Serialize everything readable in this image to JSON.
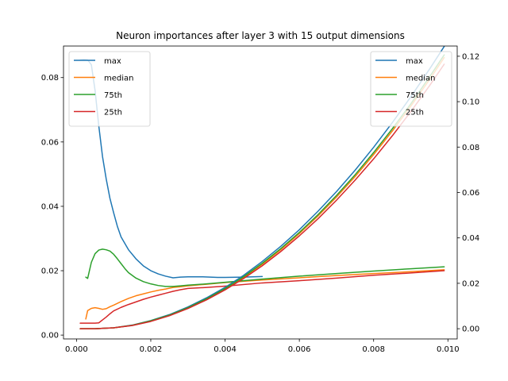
{
  "chart_data": {
    "type": "line",
    "title": "Neuron importances after layer 3 with 15 output dimensions",
    "xlabel": "",
    "ylabel_left": "",
    "ylabel_right": "",
    "xlim": [
      -0.00035,
      0.01025
    ],
    "ylim_left": [
      -0.0012,
      0.0898
    ],
    "ylim_right": [
      -0.0045,
      0.1245
    ],
    "x_ticks": [
      "0.000",
      "0.002",
      "0.004",
      "0.006",
      "0.008",
      "0.010"
    ],
    "y_left_ticks": [
      "0.00",
      "0.02",
      "0.04",
      "0.06",
      "0.08"
    ],
    "y_right_ticks": [
      "0.00",
      "0.02",
      "0.04",
      "0.06",
      "0.08",
      "0.10",
      "0.12"
    ],
    "grid": false,
    "legends": [
      {
        "placement": "top-left",
        "entries": [
          "max",
          "median",
          "75th",
          "25th"
        ]
      },
      {
        "placement": "top-right",
        "entries": [
          "max",
          "median",
          "75th",
          "25th"
        ]
      }
    ],
    "colors": {
      "max": "#1f77b4",
      "median": "#ff7f0e",
      "75th": "#2ca02c",
      "25th": "#d62728"
    },
    "left_axis_series": [
      {
        "name": "max",
        "color": "#1f77b4",
        "points": [
          [
            0.0001,
            0.0855
          ],
          [
            0.0002,
            0.0856
          ],
          [
            0.0003,
            0.0855
          ],
          [
            0.0004,
            0.084
          ],
          [
            0.0005,
            0.076
          ],
          [
            0.0006,
            0.065
          ],
          [
            0.0007,
            0.0555
          ],
          [
            0.0008,
            0.0485
          ],
          [
            0.0009,
            0.0425
          ],
          [
            0.001,
            0.038
          ],
          [
            0.0011,
            0.0338
          ],
          [
            0.0012,
            0.0305
          ],
          [
            0.0014,
            0.0265
          ],
          [
            0.0016,
            0.0237
          ],
          [
            0.0018,
            0.0215
          ],
          [
            0.002,
            0.02
          ],
          [
            0.0022,
            0.019
          ],
          [
            0.0024,
            0.0183
          ],
          [
            0.0026,
            0.0178
          ],
          [
            0.0028,
            0.018
          ],
          [
            0.003,
            0.0181
          ],
          [
            0.0032,
            0.0181
          ],
          [
            0.0034,
            0.0181
          ],
          [
            0.0036,
            0.018
          ],
          [
            0.0038,
            0.0179
          ],
          [
            0.004,
            0.0179
          ],
          [
            0.0045,
            0.018
          ],
          [
            0.005,
            0.0182
          ]
        ]
      },
      {
        "name": "median",
        "color": "#ff7f0e",
        "points": [
          [
            0.00025,
            0.005
          ],
          [
            0.0003,
            0.0076
          ],
          [
            0.0004,
            0.0083
          ],
          [
            0.0005,
            0.0085
          ],
          [
            0.0006,
            0.0083
          ],
          [
            0.0007,
            0.008
          ],
          [
            0.0008,
            0.0082
          ],
          [
            0.0009,
            0.0088
          ],
          [
            0.001,
            0.0093
          ],
          [
            0.0012,
            0.0104
          ],
          [
            0.0014,
            0.0114
          ],
          [
            0.0016,
            0.0122
          ],
          [
            0.0018,
            0.0128
          ],
          [
            0.002,
            0.0134
          ],
          [
            0.0022,
            0.0139
          ],
          [
            0.0024,
            0.0143
          ],
          [
            0.0026,
            0.0148
          ],
          [
            0.0028,
            0.015
          ],
          [
            0.003,
            0.0153
          ],
          [
            0.0035,
            0.0158
          ],
          [
            0.004,
            0.0163
          ],
          [
            0.005,
            0.0171
          ],
          [
            0.006,
            0.0178
          ],
          [
            0.007,
            0.0185
          ],
          [
            0.008,
            0.0191
          ],
          [
            0.009,
            0.0197
          ],
          [
            0.0099,
            0.0203
          ]
        ]
      },
      {
        "name": "75th",
        "color": "#2ca02c",
        "points": [
          [
            0.00025,
            0.018
          ],
          [
            0.0003,
            0.0176
          ],
          [
            0.0004,
            0.0226
          ],
          [
            0.0005,
            0.0253
          ],
          [
            0.0006,
            0.0264
          ],
          [
            0.0007,
            0.0267
          ],
          [
            0.0008,
            0.0265
          ],
          [
            0.0009,
            0.0261
          ],
          [
            0.001,
            0.0251
          ],
          [
            0.0011,
            0.0237
          ],
          [
            0.0012,
            0.0222
          ],
          [
            0.0013,
            0.0207
          ],
          [
            0.0014,
            0.0194
          ],
          [
            0.0016,
            0.0177
          ],
          [
            0.0018,
            0.0166
          ],
          [
            0.002,
            0.0159
          ],
          [
            0.0022,
            0.0154
          ],
          [
            0.0024,
            0.0151
          ],
          [
            0.0026,
            0.0151
          ],
          [
            0.0028,
            0.0153
          ],
          [
            0.003,
            0.0155
          ],
          [
            0.0035,
            0.0159
          ],
          [
            0.004,
            0.0164
          ],
          [
            0.005,
            0.0174
          ],
          [
            0.006,
            0.0183
          ],
          [
            0.007,
            0.0191
          ],
          [
            0.008,
            0.0199
          ],
          [
            0.009,
            0.0206
          ],
          [
            0.0099,
            0.0212
          ]
        ]
      },
      {
        "name": "25th",
        "color": "#d62728",
        "points": [
          [
            0.0001,
            0.0037
          ],
          [
            0.0003,
            0.0037
          ],
          [
            0.0005,
            0.0037
          ],
          [
            0.0006,
            0.0038
          ],
          [
            0.0007,
            0.0047
          ],
          [
            0.0008,
            0.0056
          ],
          [
            0.0009,
            0.0066
          ],
          [
            0.001,
            0.0075
          ],
          [
            0.0012,
            0.0086
          ],
          [
            0.0014,
            0.0095
          ],
          [
            0.0016,
            0.0103
          ],
          [
            0.0018,
            0.0111
          ],
          [
            0.002,
            0.0118
          ],
          [
            0.0022,
            0.0124
          ],
          [
            0.0024,
            0.013
          ],
          [
            0.0026,
            0.0136
          ],
          [
            0.0028,
            0.0141
          ],
          [
            0.003,
            0.0145
          ],
          [
            0.0035,
            0.0148
          ],
          [
            0.004,
            0.0152
          ],
          [
            0.005,
            0.0162
          ],
          [
            0.006,
            0.0169
          ],
          [
            0.007,
            0.0177
          ],
          [
            0.008,
            0.0186
          ],
          [
            0.009,
            0.0193
          ],
          [
            0.0099,
            0.02
          ]
        ]
      }
    ],
    "right_axis_series": [
      {
        "name": "max",
        "color": "#1f77b4",
        "points": [
          [
            0.0001,
            0.0
          ],
          [
            0.0005,
            0.0
          ],
          [
            0.001,
            0.0004
          ],
          [
            0.0015,
            0.0016
          ],
          [
            0.002,
            0.0036
          ],
          [
            0.0025,
            0.0062
          ],
          [
            0.003,
            0.0096
          ],
          [
            0.0035,
            0.0136
          ],
          [
            0.004,
            0.0182
          ],
          [
            0.0045,
            0.0235
          ],
          [
            0.005,
            0.0296
          ],
          [
            0.0055,
            0.0363
          ],
          [
            0.006,
            0.0436
          ],
          [
            0.0065,
            0.0517
          ],
          [
            0.007,
            0.0604
          ],
          [
            0.0075,
            0.0698
          ],
          [
            0.008,
            0.0799
          ],
          [
            0.0085,
            0.0907
          ],
          [
            0.009,
            0.1021
          ],
          [
            0.0095,
            0.1142
          ],
          [
            0.0099,
            0.1243
          ]
        ]
      },
      {
        "name": "median",
        "color": "#ff7f0e",
        "points": [
          [
            0.0001,
            0.0
          ],
          [
            0.0005,
            0.0
          ],
          [
            0.001,
            0.0004
          ],
          [
            0.0015,
            0.0015
          ],
          [
            0.002,
            0.0034
          ],
          [
            0.0025,
            0.0059
          ],
          [
            0.003,
            0.0092
          ],
          [
            0.0035,
            0.013
          ],
          [
            0.004,
            0.0175
          ],
          [
            0.0045,
            0.0226
          ],
          [
            0.005,
            0.0284
          ],
          [
            0.0055,
            0.0348
          ],
          [
            0.006,
            0.0419
          ],
          [
            0.0065,
            0.0496
          ],
          [
            0.007,
            0.058
          ],
          [
            0.0075,
            0.067
          ],
          [
            0.008,
            0.0767
          ],
          [
            0.0085,
            0.087
          ],
          [
            0.009,
            0.098
          ],
          [
            0.0095,
            0.1096
          ],
          [
            0.0099,
            0.1194
          ]
        ]
      },
      {
        "name": "75th",
        "color": "#2ca02c",
        "points": [
          [
            0.0001,
            0.0
          ],
          [
            0.0005,
            0.0
          ],
          [
            0.001,
            0.0004
          ],
          [
            0.0015,
            0.0015
          ],
          [
            0.002,
            0.0035
          ],
          [
            0.0025,
            0.006
          ],
          [
            0.003,
            0.0093
          ],
          [
            0.0035,
            0.0132
          ],
          [
            0.004,
            0.0177
          ],
          [
            0.0045,
            0.0229
          ],
          [
            0.005,
            0.0288
          ],
          [
            0.0055,
            0.0353
          ],
          [
            0.006,
            0.0424
          ],
          [
            0.0065,
            0.0502
          ],
          [
            0.007,
            0.0587
          ],
          [
            0.0075,
            0.0678
          ],
          [
            0.008,
            0.0776
          ],
          [
            0.0085,
            0.088
          ],
          [
            0.009,
            0.099
          ],
          [
            0.0095,
            0.1108
          ],
          [
            0.0099,
            0.1206
          ]
        ]
      },
      {
        "name": "25th",
        "color": "#d62728",
        "points": [
          [
            0.0001,
            0.0
          ],
          [
            0.0005,
            0.0
          ],
          [
            0.001,
            0.0004
          ],
          [
            0.0015,
            0.0014
          ],
          [
            0.002,
            0.0032
          ],
          [
            0.0025,
            0.0057
          ],
          [
            0.003,
            0.0089
          ],
          [
            0.0035,
            0.0127
          ],
          [
            0.004,
            0.0171
          ],
          [
            0.0045,
            0.0221
          ],
          [
            0.005,
            0.0277
          ],
          [
            0.0055,
            0.034
          ],
          [
            0.006,
            0.0409
          ],
          [
            0.0065,
            0.0484
          ],
          [
            0.007,
            0.0566
          ],
          [
            0.0075,
            0.0654
          ],
          [
            0.008,
            0.0748
          ],
          [
            0.0085,
            0.0849
          ],
          [
            0.009,
            0.0956
          ],
          [
            0.0095,
            0.1069
          ],
          [
            0.0099,
            0.1165
          ]
        ]
      }
    ]
  }
}
